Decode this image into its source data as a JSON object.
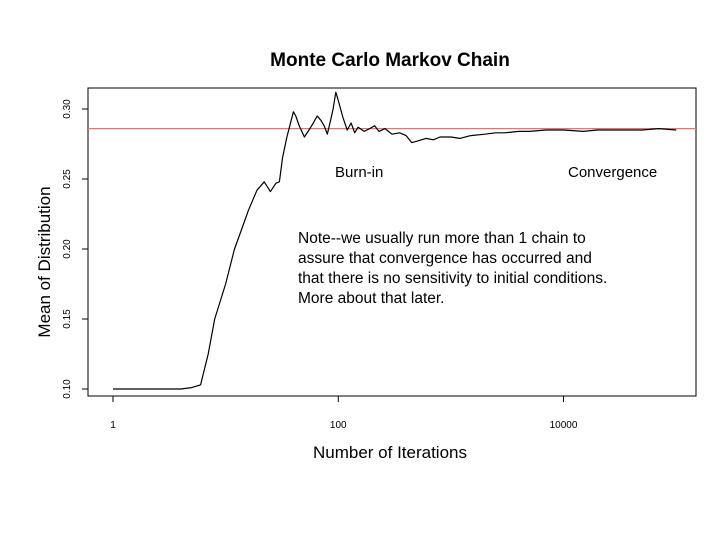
{
  "chart_data": {
    "type": "line",
    "title": "Monte Carlo Markov Chain",
    "xlabel": "Number of Iterations",
    "ylabel": "Mean of Distribution",
    "x_scale": "log",
    "xlim": [
      0.6,
      150000
    ],
    "ylim": [
      0.095,
      0.315
    ],
    "x_ticks": [
      {
        "value": 1,
        "label": "1"
      },
      {
        "value": 100,
        "label": "100"
      },
      {
        "value": 10000,
        "label": "10000"
      }
    ],
    "y_ticks": [
      {
        "value": 0.1,
        "label": "0.10"
      },
      {
        "value": 0.15,
        "label": "0.15"
      },
      {
        "value": 0.2,
        "label": "0.20"
      },
      {
        "value": 0.25,
        "label": "0.25"
      },
      {
        "value": 0.3,
        "label": "0.30"
      }
    ],
    "grid": false,
    "series": [
      {
        "color": "#000000",
        "x": [
          1,
          2,
          3,
          4,
          5,
          6,
          7,
          8,
          10,
          12,
          14,
          16,
          19,
          22,
          25,
          28,
          30,
          32,
          35,
          40,
          42,
          45,
          50,
          55,
          60,
          65,
          70,
          75,
          80,
          85,
          90,
          95,
          100,
          110,
          120,
          130,
          140,
          150,
          170,
          190,
          210,
          230,
          260,
          300,
          350,
          400,
          450,
          500,
          600,
          700,
          800,
          1000,
          1200,
          1500,
          2000,
          2500,
          3000,
          4000,
          5000,
          7000,
          10000,
          15000,
          20000,
          30000,
          50000,
          70000,
          100000
        ],
        "y": [
          0.1,
          0.1,
          0.1,
          0.1,
          0.101,
          0.103,
          0.125,
          0.15,
          0.175,
          0.2,
          0.215,
          0.228,
          0.242,
          0.248,
          0.241,
          0.247,
          0.248,
          0.265,
          0.28,
          0.298,
          0.295,
          0.288,
          0.28,
          0.285,
          0.29,
          0.295,
          0.292,
          0.288,
          0.282,
          0.291,
          0.3,
          0.312,
          0.306,
          0.294,
          0.285,
          0.29,
          0.283,
          0.287,
          0.284,
          0.286,
          0.288,
          0.284,
          0.286,
          0.282,
          0.283,
          0.281,
          0.276,
          0.277,
          0.279,
          0.278,
          0.28,
          0.28,
          0.279,
          0.281,
          0.282,
          0.283,
          0.283,
          0.284,
          0.284,
          0.285,
          0.285,
          0.284,
          0.285,
          0.285,
          0.285,
          0.286,
          0.285
        ]
      }
    ],
    "reference_lines": [
      {
        "y": 0.286,
        "color": "#e8746c"
      }
    ],
    "annotations": {
      "burn_in": "Burn-in",
      "convergence": "Convergence",
      "note": [
        "Note--we usually run more than 1 chain to",
        "assure that convergence has occurred and",
        "that there is no sensitivity to initial conditions.",
        "More about that later."
      ]
    }
  }
}
